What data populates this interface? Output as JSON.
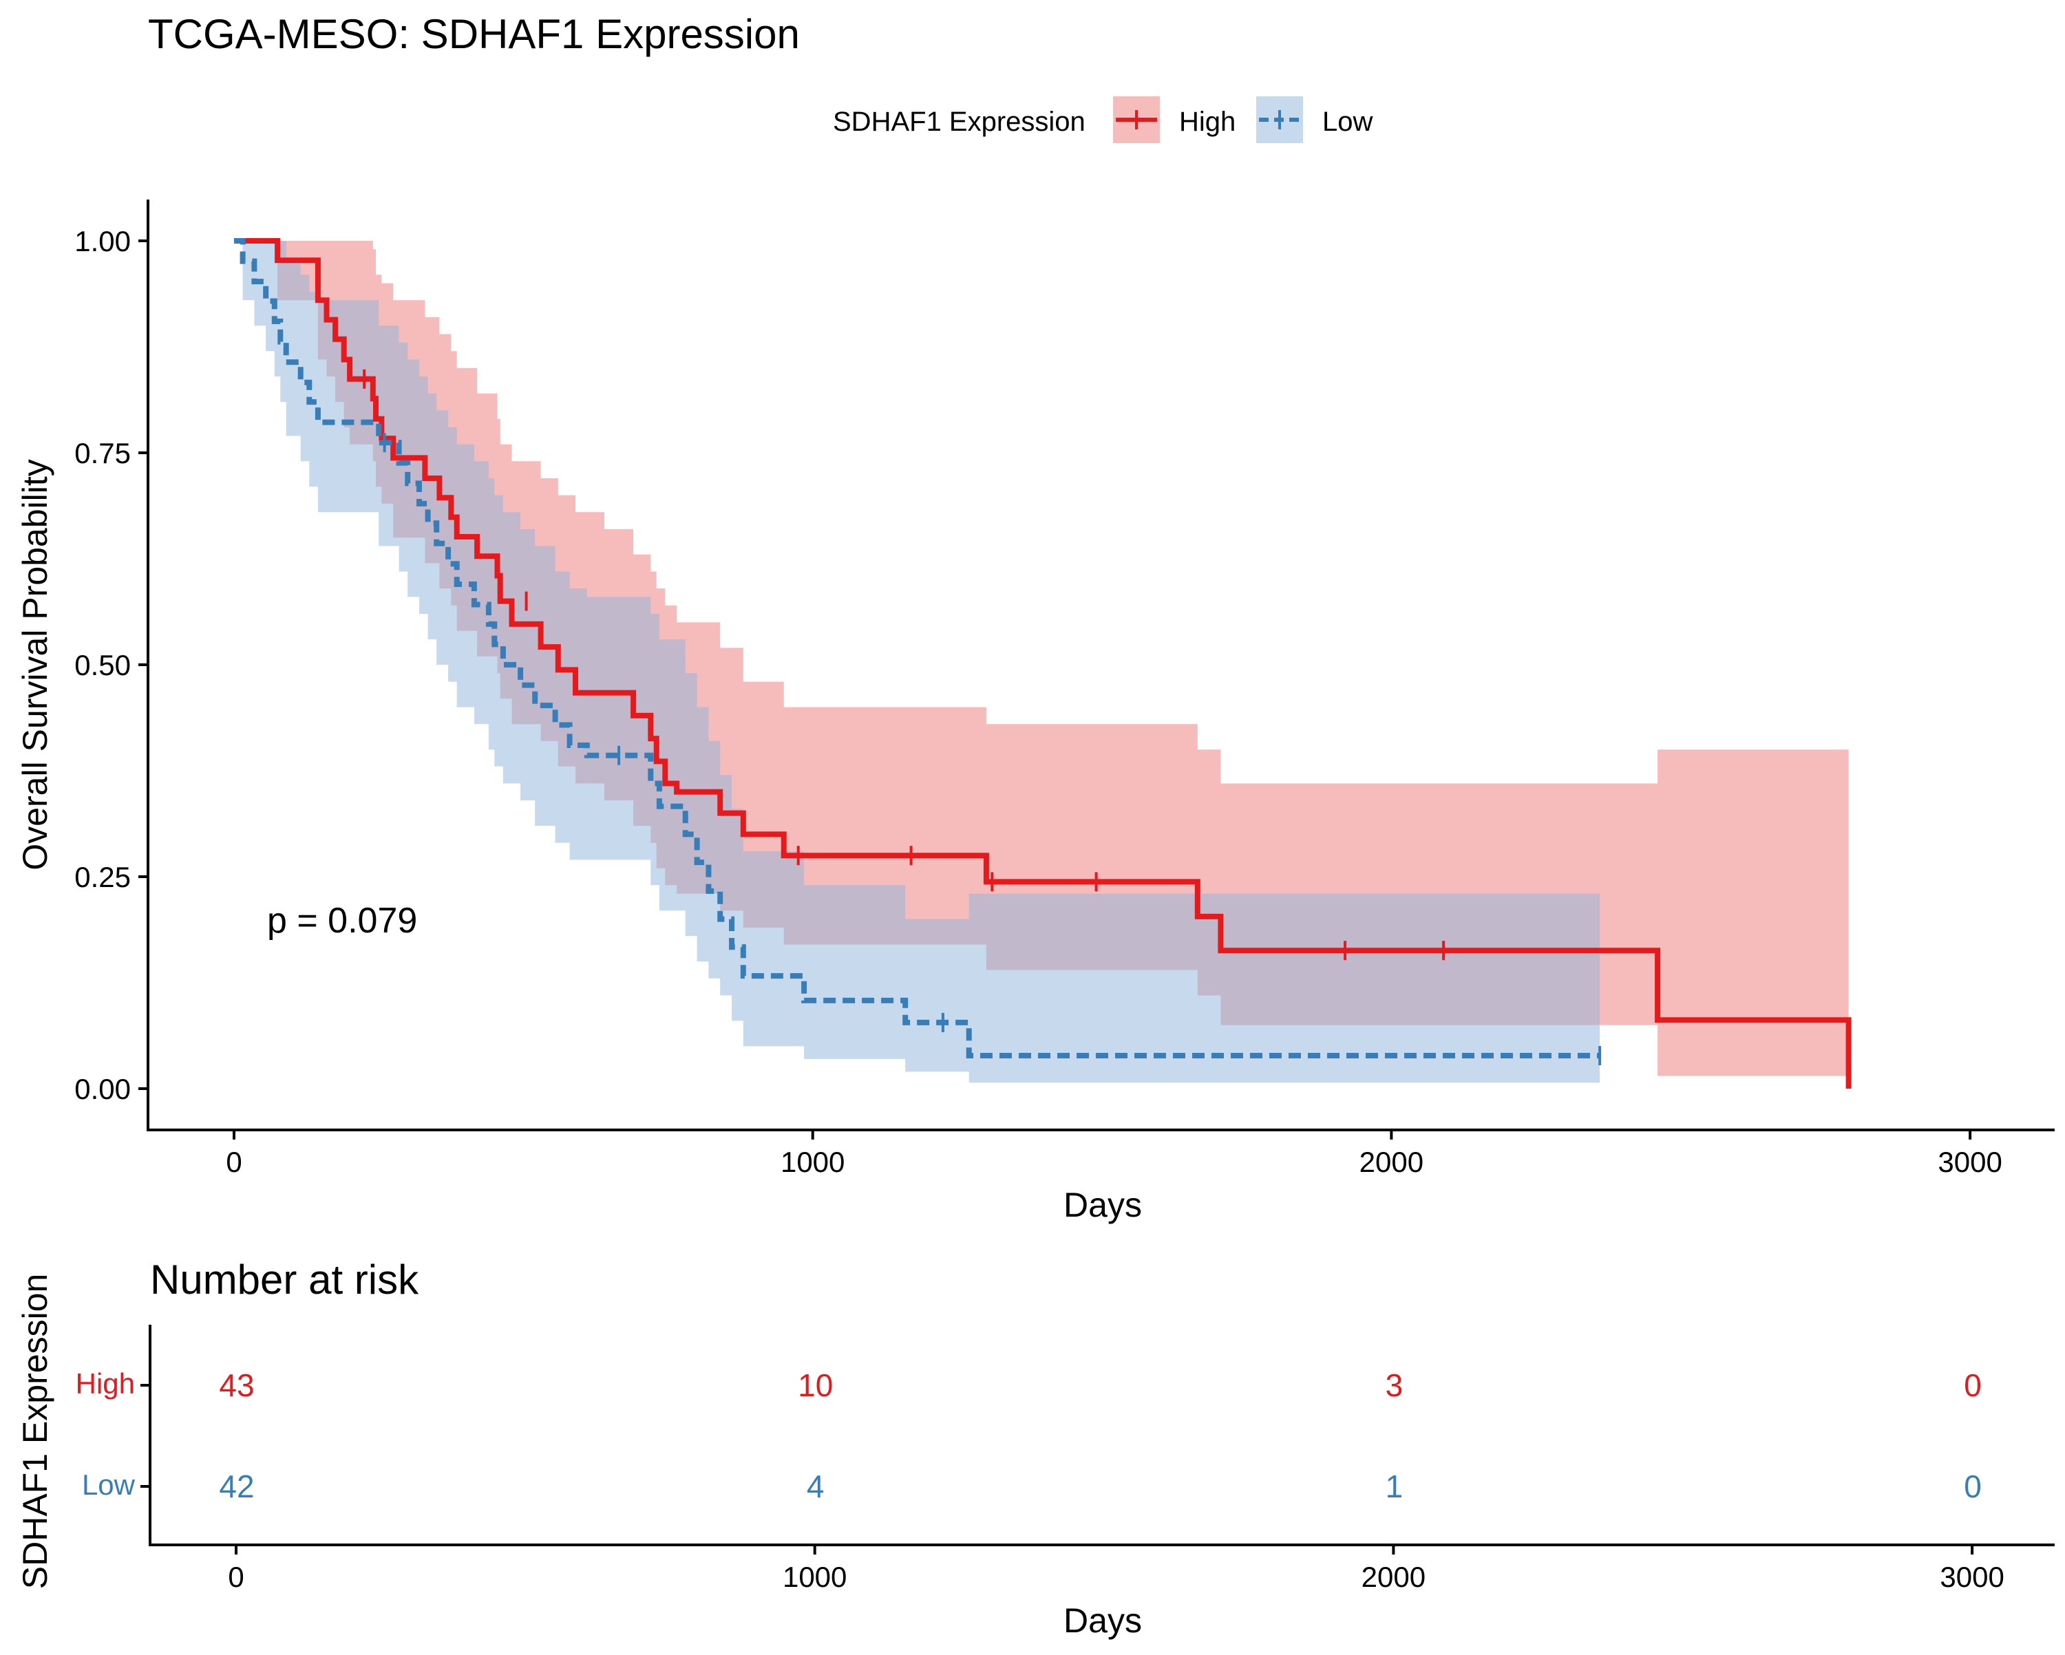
{
  "chart_data": {
    "type": "line",
    "subtype": "kaplan-meier",
    "title": "TCGA-MESO: SDHAF1 Expression",
    "xlabel": "Days",
    "ylabel": "Overall Survival Probability",
    "xlim": [
      -150,
      3150
    ],
    "ylim": [
      -0.05,
      1.05
    ],
    "x_ticks": [
      0,
      1000,
      2000,
      3000
    ],
    "x_tick_labels": [
      "0",
      "1000",
      "2000",
      "3000"
    ],
    "y_ticks": [
      0,
      0.25,
      0.5,
      0.75,
      1.0
    ],
    "y_tick_labels": [
      "0.00",
      "0.25",
      "0.50",
      "0.75",
      "1.00"
    ],
    "grid": false,
    "legend": {
      "title": "SDHAF1 Expression",
      "position": "top",
      "labels": [
        "High",
        "Low"
      ]
    },
    "pvalue_text": "p = 0.079",
    "series": [
      {
        "name": "High",
        "color": "#E41A1C",
        "band_color": "#EE7A7A",
        "dash": false,
        "steps": [
          [
            0,
            1.0
          ],
          [
            75,
            0.977
          ],
          [
            145,
            0.93
          ],
          [
            160,
            0.907
          ],
          [
            175,
            0.884
          ],
          [
            190,
            0.86
          ],
          [
            200,
            0.837
          ],
          [
            240,
            0.814
          ],
          [
            245,
            0.79
          ],
          [
            255,
            0.767
          ],
          [
            275,
            0.744
          ],
          [
            330,
            0.72
          ],
          [
            355,
            0.697
          ],
          [
            375,
            0.674
          ],
          [
            385,
            0.651
          ],
          [
            420,
            0.628
          ],
          [
            455,
            0.605
          ],
          [
            460,
            0.575
          ],
          [
            480,
            0.548
          ],
          [
            530,
            0.521
          ],
          [
            560,
            0.494
          ],
          [
            590,
            0.467
          ],
          [
            640,
            0.467
          ],
          [
            690,
            0.44
          ],
          [
            720,
            0.413
          ],
          [
            730,
            0.386
          ],
          [
            745,
            0.36
          ],
          [
            765,
            0.35
          ],
          [
            840,
            0.325
          ],
          [
            880,
            0.3
          ],
          [
            950,
            0.275
          ],
          [
            1300,
            0.244
          ],
          [
            1665,
            0.203
          ],
          [
            1705,
            0.163
          ],
          [
            2460,
            0.081
          ],
          [
            2790,
            0.081
          ],
          [
            2790,
            0.0
          ]
        ],
        "band": [
          [
            0,
            1,
            1
          ],
          [
            75,
            0.93,
            1
          ],
          [
            145,
            0.86,
            1
          ],
          [
            160,
            0.84,
            1
          ],
          [
            175,
            0.81,
            1
          ],
          [
            190,
            0.78,
            1
          ],
          [
            200,
            0.76,
            1
          ],
          [
            240,
            0.74,
            0.99
          ],
          [
            245,
            0.71,
            0.96
          ],
          [
            255,
            0.69,
            0.95
          ],
          [
            275,
            0.65,
            0.93
          ],
          [
            330,
            0.62,
            0.91
          ],
          [
            355,
            0.59,
            0.89
          ],
          [
            375,
            0.57,
            0.87
          ],
          [
            385,
            0.54,
            0.85
          ],
          [
            420,
            0.51,
            0.82
          ],
          [
            455,
            0.49,
            0.79
          ],
          [
            460,
            0.46,
            0.76
          ],
          [
            480,
            0.43,
            0.74
          ],
          [
            530,
            0.41,
            0.72
          ],
          [
            560,
            0.38,
            0.7
          ],
          [
            590,
            0.36,
            0.68
          ],
          [
            640,
            0.34,
            0.66
          ],
          [
            690,
            0.31,
            0.63
          ],
          [
            720,
            0.29,
            0.61
          ],
          [
            730,
            0.26,
            0.59
          ],
          [
            745,
            0.24,
            0.57
          ],
          [
            765,
            0.23,
            0.55
          ],
          [
            840,
            0.21,
            0.52
          ],
          [
            880,
            0.19,
            0.48
          ],
          [
            950,
            0.17,
            0.45
          ],
          [
            1300,
            0.14,
            0.43
          ],
          [
            1665,
            0.11,
            0.4
          ],
          [
            1705,
            0.075,
            0.36
          ],
          [
            2460,
            0.015,
            0.4
          ],
          [
            2790,
            0.015,
            0.4
          ]
        ],
        "censors": [
          [
            225,
            0.837
          ],
          [
            505,
            0.575
          ],
          [
            975,
            0.275
          ],
          [
            1170,
            0.275
          ],
          [
            1310,
            0.244
          ],
          [
            1490,
            0.244
          ],
          [
            1920,
            0.163
          ],
          [
            2090,
            0.163
          ]
        ]
      },
      {
        "name": "Low",
        "color": "#377EB8",
        "band_color": "#8DB4DC",
        "dash": true,
        "steps": [
          [
            0,
            1.0
          ],
          [
            15,
            0.976
          ],
          [
            35,
            0.952
          ],
          [
            55,
            0.929
          ],
          [
            70,
            0.905
          ],
          [
            80,
            0.881
          ],
          [
            90,
            0.857
          ],
          [
            115,
            0.833
          ],
          [
            130,
            0.81
          ],
          [
            145,
            0.786
          ],
          [
            250,
            0.762
          ],
          [
            285,
            0.738
          ],
          [
            300,
            0.714
          ],
          [
            320,
            0.69
          ],
          [
            335,
            0.667
          ],
          [
            350,
            0.643
          ],
          [
            370,
            0.619
          ],
          [
            385,
            0.595
          ],
          [
            415,
            0.571
          ],
          [
            440,
            0.548
          ],
          [
            450,
            0.524
          ],
          [
            465,
            0.5
          ],
          [
            495,
            0.476
          ],
          [
            520,
            0.452
          ],
          [
            555,
            0.429
          ],
          [
            580,
            0.405
          ],
          [
            610,
            0.393
          ],
          [
            720,
            0.36
          ],
          [
            735,
            0.333
          ],
          [
            780,
            0.3
          ],
          [
            800,
            0.267
          ],
          [
            820,
            0.233
          ],
          [
            840,
            0.2
          ],
          [
            860,
            0.167
          ],
          [
            880,
            0.133
          ],
          [
            985,
            0.104
          ],
          [
            1160,
            0.078
          ],
          [
            1270,
            0.039
          ],
          [
            2360,
            0.039
          ]
        ],
        "band": [
          [
            0,
            1,
            1
          ],
          [
            15,
            0.93,
            1
          ],
          [
            35,
            0.9,
            1
          ],
          [
            55,
            0.87,
            1
          ],
          [
            70,
            0.84,
            1
          ],
          [
            80,
            0.81,
            1
          ],
          [
            90,
            0.77,
            0.98
          ],
          [
            115,
            0.74,
            0.96
          ],
          [
            130,
            0.71,
            0.94
          ],
          [
            145,
            0.68,
            0.93
          ],
          [
            250,
            0.64,
            0.9
          ],
          [
            285,
            0.61,
            0.88
          ],
          [
            300,
            0.58,
            0.86
          ],
          [
            320,
            0.56,
            0.84
          ],
          [
            335,
            0.53,
            0.82
          ],
          [
            350,
            0.5,
            0.8
          ],
          [
            370,
            0.48,
            0.78
          ],
          [
            385,
            0.45,
            0.76
          ],
          [
            415,
            0.43,
            0.74
          ],
          [
            440,
            0.4,
            0.72
          ],
          [
            450,
            0.38,
            0.7
          ],
          [
            465,
            0.36,
            0.68
          ],
          [
            495,
            0.34,
            0.66
          ],
          [
            520,
            0.31,
            0.64
          ],
          [
            555,
            0.29,
            0.61
          ],
          [
            580,
            0.27,
            0.59
          ],
          [
            610,
            0.27,
            0.58
          ],
          [
            720,
            0.24,
            0.56
          ],
          [
            735,
            0.21,
            0.53
          ],
          [
            780,
            0.18,
            0.49
          ],
          [
            800,
            0.15,
            0.45
          ],
          [
            820,
            0.13,
            0.41
          ],
          [
            840,
            0.11,
            0.37
          ],
          [
            860,
            0.08,
            0.33
          ],
          [
            880,
            0.05,
            0.28
          ],
          [
            985,
            0.035,
            0.24
          ],
          [
            1160,
            0.02,
            0.2
          ],
          [
            1270,
            0.007,
            0.23
          ],
          [
            2360,
            0.007,
            0.23
          ]
        ],
        "censors": [
          [
            260,
            0.762
          ],
          [
            665,
            0.393
          ],
          [
            1225,
            0.078
          ],
          [
            2360,
            0.039
          ]
        ]
      }
    ],
    "risk_table": {
      "title": "Number at risk",
      "ylabel": "SDHAF1 Expression",
      "xlabel": "Days",
      "times": [
        0,
        1000,
        2000,
        3000
      ],
      "time_labels": [
        "0",
        "1000",
        "2000",
        "3000"
      ],
      "rows": [
        {
          "label": "High",
          "color": "#E41A1C",
          "counts": [
            "43",
            "10",
            "3",
            "0"
          ]
        },
        {
          "label": "Low",
          "color": "#377EB8",
          "counts": [
            "42",
            "4",
            "1",
            "0"
          ]
        }
      ]
    }
  }
}
